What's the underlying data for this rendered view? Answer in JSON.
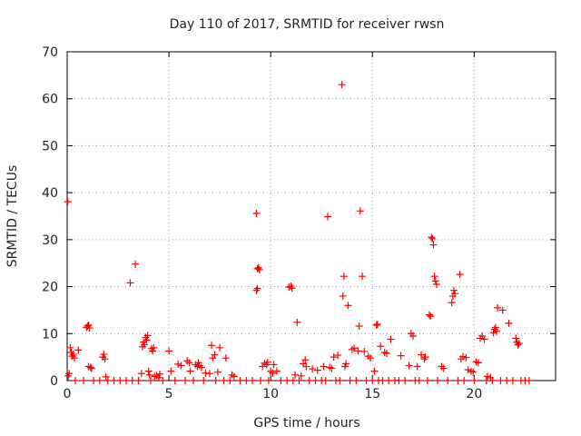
{
  "chart_data": {
    "type": "scatter",
    "title": "Day 110 of 2017, SRMTID for receiver rwsn",
    "xlabel": "GPS time / hours",
    "ylabel": "SRMTID / TECUs",
    "xlim": [
      0,
      24
    ],
    "ylim": [
      0,
      70
    ],
    "xticks": [
      0,
      5,
      10,
      15,
      20
    ],
    "yticks": [
      0,
      10,
      20,
      30,
      40,
      50,
      60,
      70
    ],
    "grid": true,
    "marker": "plus",
    "color": "#ff0000",
    "points": [
      [
        0.03,
        38.1
      ],
      [
        0.05,
        1.0
      ],
      [
        0.1,
        1.5
      ],
      [
        0.15,
        7.0
      ],
      [
        0.2,
        6.0
      ],
      [
        0.25,
        5.2
      ],
      [
        0.3,
        5.6
      ],
      [
        0.35,
        4.8
      ],
      [
        0.55,
        6.5
      ],
      [
        0.95,
        11.3
      ],
      [
        1.0,
        11.6
      ],
      [
        1.05,
        11.8
      ],
      [
        1.1,
        11.2
      ],
      [
        1.05,
        3.0
      ],
      [
        1.15,
        2.8
      ],
      [
        1.2,
        2.6
      ],
      [
        1.75,
        5.0
      ],
      [
        1.8,
        5.6
      ],
      [
        1.85,
        4.6
      ],
      [
        1.9,
        0.8
      ],
      [
        3.1,
        20.8
      ],
      [
        3.35,
        24.8
      ],
      [
        3.65,
        1.5
      ],
      [
        3.7,
        7.2
      ],
      [
        3.75,
        8.2
      ],
      [
        3.8,
        7.6
      ],
      [
        3.85,
        9.2
      ],
      [
        3.9,
        8.6
      ],
      [
        3.95,
        9.6
      ],
      [
        4.0,
        2.0
      ],
      [
        4.05,
        1.2
      ],
      [
        4.15,
        6.8
      ],
      [
        4.2,
        6.3
      ],
      [
        4.25,
        7.0
      ],
      [
        4.3,
        0.9
      ],
      [
        4.4,
        1.1
      ],
      [
        4.5,
        0.6
      ],
      [
        4.55,
        1.4
      ],
      [
        5.0,
        6.3
      ],
      [
        5.1,
        2.0
      ],
      [
        5.45,
        3.5
      ],
      [
        5.6,
        3.2
      ],
      [
        5.9,
        4.2
      ],
      [
        6.0,
        3.8
      ],
      [
        6.05,
        2.0
      ],
      [
        6.3,
        3.4
      ],
      [
        6.4,
        3.0
      ],
      [
        6.45,
        3.8
      ],
      [
        6.5,
        3.2
      ],
      [
        6.6,
        2.8
      ],
      [
        6.8,
        1.6
      ],
      [
        7.0,
        1.5
      ],
      [
        7.1,
        7.5
      ],
      [
        7.15,
        4.8
      ],
      [
        7.25,
        5.5
      ],
      [
        7.4,
        1.8
      ],
      [
        7.5,
        7.0
      ],
      [
        7.8,
        4.8
      ],
      [
        8.1,
        1.2
      ],
      [
        8.2,
        0.9
      ],
      [
        9.3,
        35.6
      ],
      [
        9.35,
        23.8
      ],
      [
        9.4,
        24.0
      ],
      [
        9.45,
        23.6
      ],
      [
        9.3,
        19.2
      ],
      [
        9.35,
        19.6
      ],
      [
        9.6,
        3.0
      ],
      [
        9.7,
        3.7
      ],
      [
        9.8,
        3.4
      ],
      [
        9.85,
        3.9
      ],
      [
        10.0,
        2.0
      ],
      [
        10.1,
        1.6
      ],
      [
        10.15,
        3.4
      ],
      [
        10.3,
        2.0
      ],
      [
        10.9,
        19.9
      ],
      [
        11.0,
        20.1
      ],
      [
        11.05,
        19.7
      ],
      [
        11.2,
        1.2
      ],
      [
        11.3,
        12.4
      ],
      [
        11.5,
        1.0
      ],
      [
        11.6,
        3.6
      ],
      [
        11.7,
        4.4
      ],
      [
        11.75,
        3.0
      ],
      [
        12.05,
        2.5
      ],
      [
        12.3,
        2.2
      ],
      [
        12.6,
        3.0
      ],
      [
        12.8,
        34.9
      ],
      [
        12.9,
        2.8
      ],
      [
        13.0,
        2.6
      ],
      [
        13.1,
        5.0
      ],
      [
        13.3,
        5.4
      ],
      [
        13.5,
        63.0
      ],
      [
        13.55,
        18.0
      ],
      [
        13.6,
        22.2
      ],
      [
        13.65,
        3.0
      ],
      [
        13.7,
        3.6
      ],
      [
        13.8,
        16.0
      ],
      [
        14.0,
        6.6
      ],
      [
        14.1,
        6.9
      ],
      [
        14.3,
        6.3
      ],
      [
        14.35,
        11.6
      ],
      [
        14.4,
        36.1
      ],
      [
        14.5,
        22.2
      ],
      [
        14.6,
        6.2
      ],
      [
        14.8,
        5.2
      ],
      [
        14.9,
        4.8
      ],
      [
        15.1,
        2.0
      ],
      [
        15.2,
        11.8
      ],
      [
        15.25,
        12.0
      ],
      [
        15.4,
        7.3
      ],
      [
        15.6,
        6.0
      ],
      [
        15.7,
        5.8
      ],
      [
        15.9,
        8.8
      ],
      [
        16.4,
        5.3
      ],
      [
        16.8,
        3.2
      ],
      [
        16.9,
        10.0
      ],
      [
        17.0,
        9.5
      ],
      [
        17.2,
        3.0
      ],
      [
        17.4,
        5.5
      ],
      [
        17.55,
        4.6
      ],
      [
        17.6,
        5.0
      ],
      [
        17.8,
        14.0
      ],
      [
        17.85,
        13.7
      ],
      [
        17.9,
        30.5
      ],
      [
        17.95,
        30.2
      ],
      [
        18.0,
        28.9
      ],
      [
        18.05,
        22.2
      ],
      [
        18.1,
        21.2
      ],
      [
        18.15,
        20.5
      ],
      [
        18.4,
        3.0
      ],
      [
        18.5,
        2.6
      ],
      [
        18.9,
        16.6
      ],
      [
        18.95,
        18.0
      ],
      [
        19.0,
        19.2
      ],
      [
        19.05,
        18.5
      ],
      [
        19.3,
        22.6
      ],
      [
        19.35,
        4.6
      ],
      [
        19.45,
        5.1
      ],
      [
        19.6,
        4.9
      ],
      [
        19.7,
        2.3
      ],
      [
        19.85,
        2.0
      ],
      [
        19.95,
        1.8
      ],
      [
        20.1,
        4.0
      ],
      [
        20.2,
        3.8
      ],
      [
        20.3,
        9.0
      ],
      [
        20.4,
        9.5
      ],
      [
        20.5,
        8.8
      ],
      [
        20.65,
        0.9
      ],
      [
        20.8,
        0.6
      ],
      [
        20.95,
        10.2
      ],
      [
        21.0,
        10.9
      ],
      [
        21.05,
        11.3
      ],
      [
        21.1,
        10.5
      ],
      [
        21.15,
        15.5
      ],
      [
        21.4,
        15.0
      ],
      [
        21.7,
        12.2
      ],
      [
        22.05,
        9.0
      ],
      [
        22.1,
        8.2
      ],
      [
        22.15,
        7.6
      ],
      [
        22.2,
        7.9
      ],
      [
        0.4,
        0.0
      ],
      [
        0.8,
        0.0
      ],
      [
        1.3,
        0.0
      ],
      [
        1.6,
        0.0
      ],
      [
        2.0,
        0.0
      ],
      [
        2.3,
        0.0
      ],
      [
        2.6,
        0.0
      ],
      [
        2.9,
        0.0
      ],
      [
        3.2,
        0.0
      ],
      [
        3.5,
        0.0
      ],
      [
        4.1,
        0.0
      ],
      [
        4.7,
        0.0
      ],
      [
        5.3,
        0.0
      ],
      [
        5.8,
        0.0
      ],
      [
        6.2,
        0.0
      ],
      [
        6.7,
        0.0
      ],
      [
        7.3,
        0.0
      ],
      [
        7.7,
        0.0
      ],
      [
        8.0,
        0.0
      ],
      [
        8.5,
        0.0
      ],
      [
        8.8,
        0.0
      ],
      [
        9.1,
        0.0
      ],
      [
        9.5,
        0.0
      ],
      [
        9.9,
        0.0
      ],
      [
        10.5,
        0.0
      ],
      [
        10.8,
        0.0
      ],
      [
        11.1,
        0.0
      ],
      [
        11.4,
        0.0
      ],
      [
        11.9,
        0.0
      ],
      [
        12.2,
        0.0
      ],
      [
        12.5,
        0.0
      ],
      [
        12.7,
        0.0
      ],
      [
        13.2,
        0.0
      ],
      [
        13.4,
        0.0
      ],
      [
        13.9,
        0.0
      ],
      [
        14.2,
        0.0
      ],
      [
        14.7,
        0.0
      ],
      [
        15.0,
        0.0
      ],
      [
        15.3,
        0.0
      ],
      [
        15.5,
        0.0
      ],
      [
        15.8,
        0.0
      ],
      [
        16.1,
        0.0
      ],
      [
        16.3,
        0.0
      ],
      [
        16.6,
        0.0
      ],
      [
        17.1,
        0.0
      ],
      [
        17.3,
        0.0
      ],
      [
        17.7,
        0.0
      ],
      [
        18.2,
        0.0
      ],
      [
        18.7,
        0.0
      ],
      [
        19.2,
        0.0
      ],
      [
        19.5,
        0.0
      ],
      [
        20.0,
        0.0
      ],
      [
        20.6,
        0.0
      ],
      [
        20.9,
        0.0
      ],
      [
        21.3,
        0.0
      ],
      [
        21.6,
        0.0
      ],
      [
        21.9,
        0.0
      ],
      [
        22.3,
        0.0
      ],
      [
        22.5,
        0.0
      ],
      [
        22.7,
        0.0
      ]
    ]
  }
}
